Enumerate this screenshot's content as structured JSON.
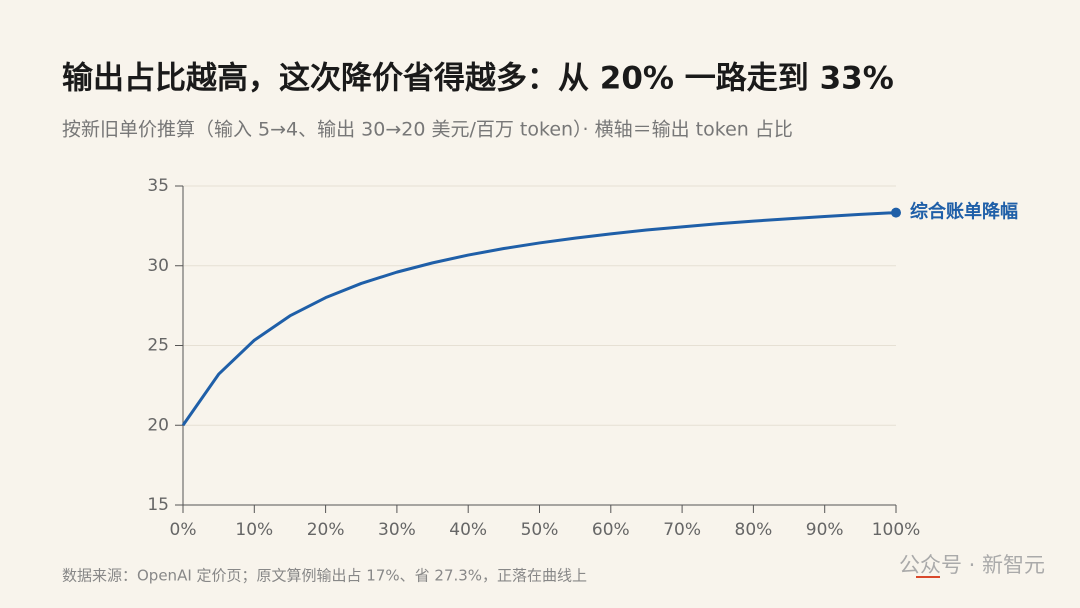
{
  "chart_data": {
    "type": "line",
    "title": "输出占比越高，这次降价省得越多：从 20% 一路走到 33%",
    "subtitle": "按新旧单价推算（输入 5→4、输出 30→20 美元/百万 token）· 横轴＝输出 token 占比",
    "source": "数据来源：OpenAI 定价页；原文算例输出占 17%、省 27.3%，正落在曲线上",
    "watermark": "公众号 · 新智元",
    "x": [
      0,
      5,
      10,
      15,
      20,
      25,
      30,
      35,
      40,
      45,
      50,
      55,
      60,
      65,
      70,
      75,
      80,
      85,
      90,
      95,
      100
    ],
    "series": [
      {
        "name": "综合账单降幅",
        "color": "#1f5fa8",
        "values": [
          20,
          23.2,
          25.33,
          26.86,
          28,
          28.89,
          29.6,
          30.18,
          30.67,
          31.08,
          31.43,
          31.73,
          32,
          32.24,
          32.44,
          32.63,
          32.8,
          32.95,
          33.09,
          33.22,
          33.33
        ]
      }
    ],
    "xlim": [
      0,
      100
    ],
    "xticks": [
      {
        "value": 0,
        "label": "0%"
      },
      {
        "value": 10,
        "label": "10%"
      },
      {
        "value": 20,
        "label": "20%"
      },
      {
        "value": 30,
        "label": "30%"
      },
      {
        "value": 40,
        "label": "40%"
      },
      {
        "value": 50,
        "label": "50%"
      },
      {
        "value": 60,
        "label": "60%"
      },
      {
        "value": 70,
        "label": "70%"
      },
      {
        "value": 80,
        "label": "80%"
      },
      {
        "value": 90,
        "label": "90%"
      },
      {
        "value": 100,
        "label": "100%"
      }
    ],
    "ylim": [
      15,
      35
    ],
    "yticks": [
      15,
      20,
      25,
      30,
      35
    ],
    "grid": true
  }
}
